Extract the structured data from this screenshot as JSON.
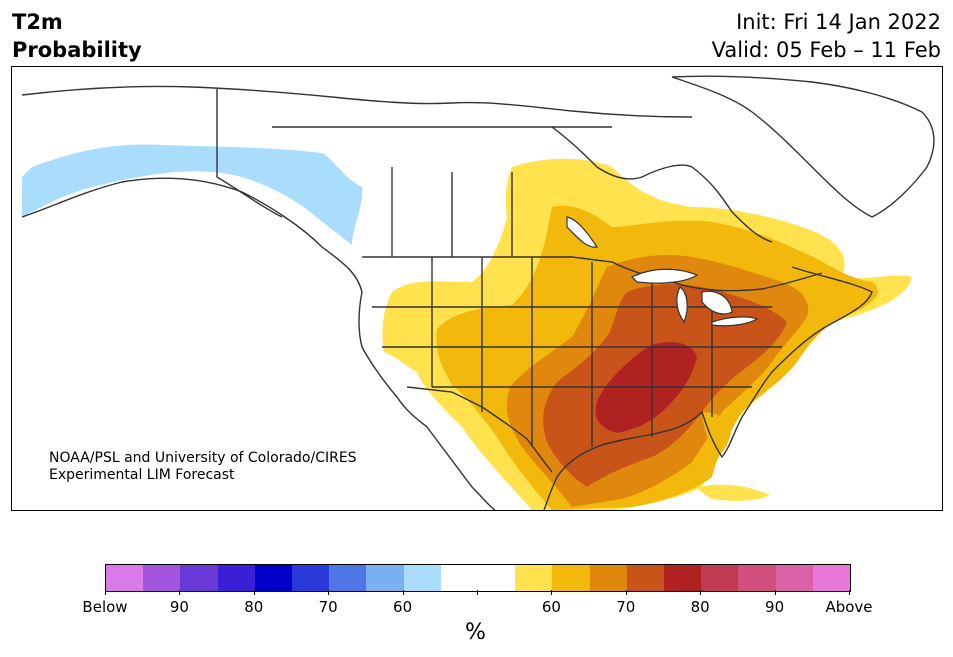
{
  "header": {
    "variable": "T2m",
    "product": "Probability",
    "init": "Init: Fri 14 Jan 2022",
    "valid": "Valid: 05 Feb – 11 Feb"
  },
  "map": {
    "region": "North America",
    "credit_line1": "NOAA/PSL and University of Colorado/CIRES",
    "credit_line2": "Experimental LIM Forecast"
  },
  "colorbar": {
    "unit": "%",
    "colors": [
      "#d87ae8",
      "#a355e0",
      "#6a3ad8",
      "#3a1fd6",
      "#0000c8",
      "#2a3ad8",
      "#4f75e6",
      "#78b0f0",
      "#aadcfc",
      "#ffffff",
      "#ffffff",
      "#ffe24d",
      "#f2b90c",
      "#e0880e",
      "#c8541a",
      "#b02222",
      "#c23a52",
      "#d25080",
      "#dc62a8",
      "#e878d8"
    ],
    "tick_labels": [
      "Below",
      "90",
      "80",
      "70",
      "60",
      "",
      "60",
      "70",
      "80",
      "90",
      "Above"
    ]
  },
  "legend_categories": {
    "below_light_blue": "#aadcfc",
    "above_yellow": "#ffe24d",
    "above_gold": "#f2b90c",
    "above_orange": "#e0880e",
    "above_dark_orange": "#c8541a",
    "above_red": "#b02222"
  }
}
